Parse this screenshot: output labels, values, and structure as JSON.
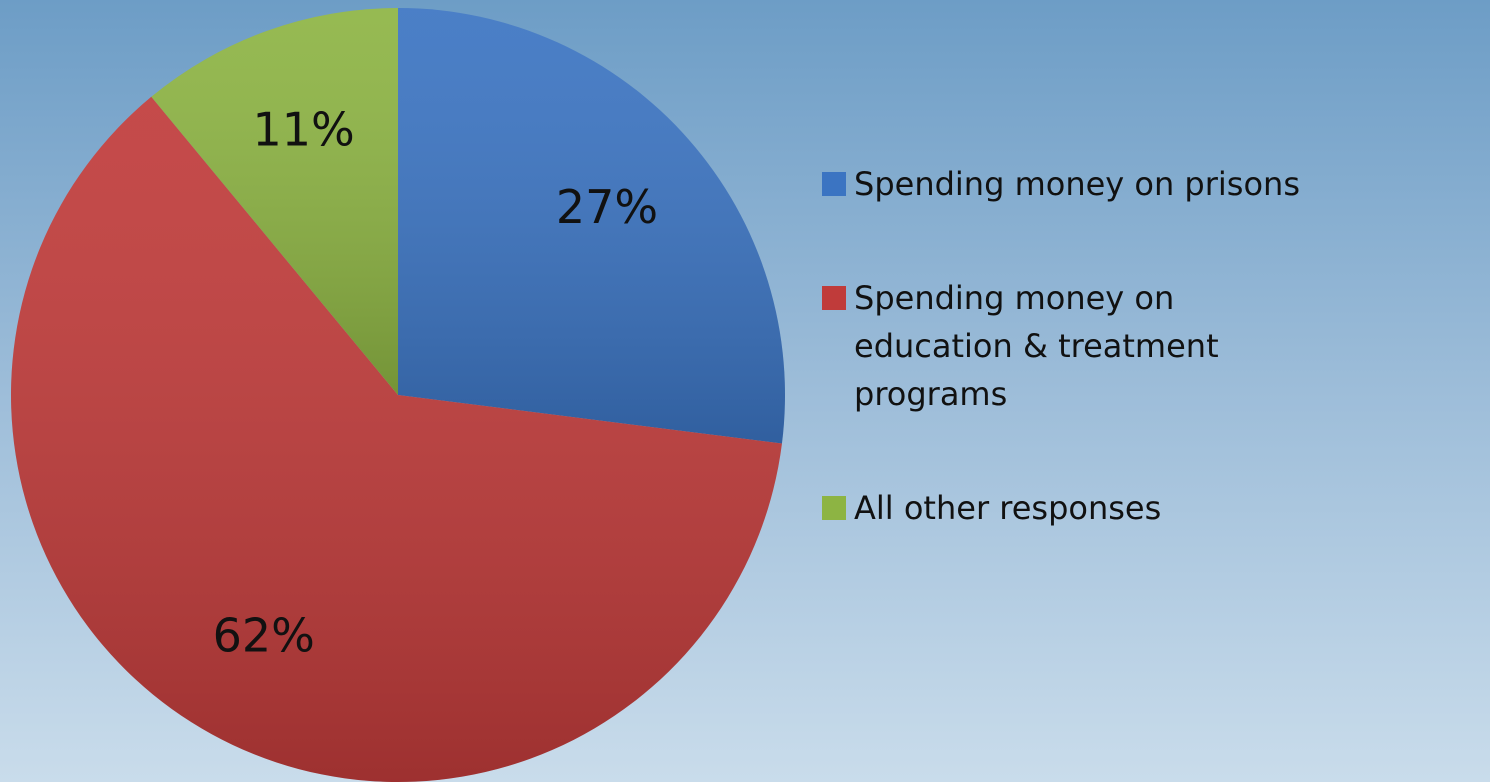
{
  "chart_data": {
    "type": "pie",
    "categories": [
      "Spending money on prisons",
      "Spending money on education & treatment programs",
      "All other responses"
    ],
    "values": [
      27,
      62,
      11
    ],
    "value_labels": [
      "27%",
      "62%",
      "11%"
    ],
    "colors": [
      "#3b74c2",
      "#c03b3a",
      "#8db443"
    ],
    "legend": "right"
  }
}
